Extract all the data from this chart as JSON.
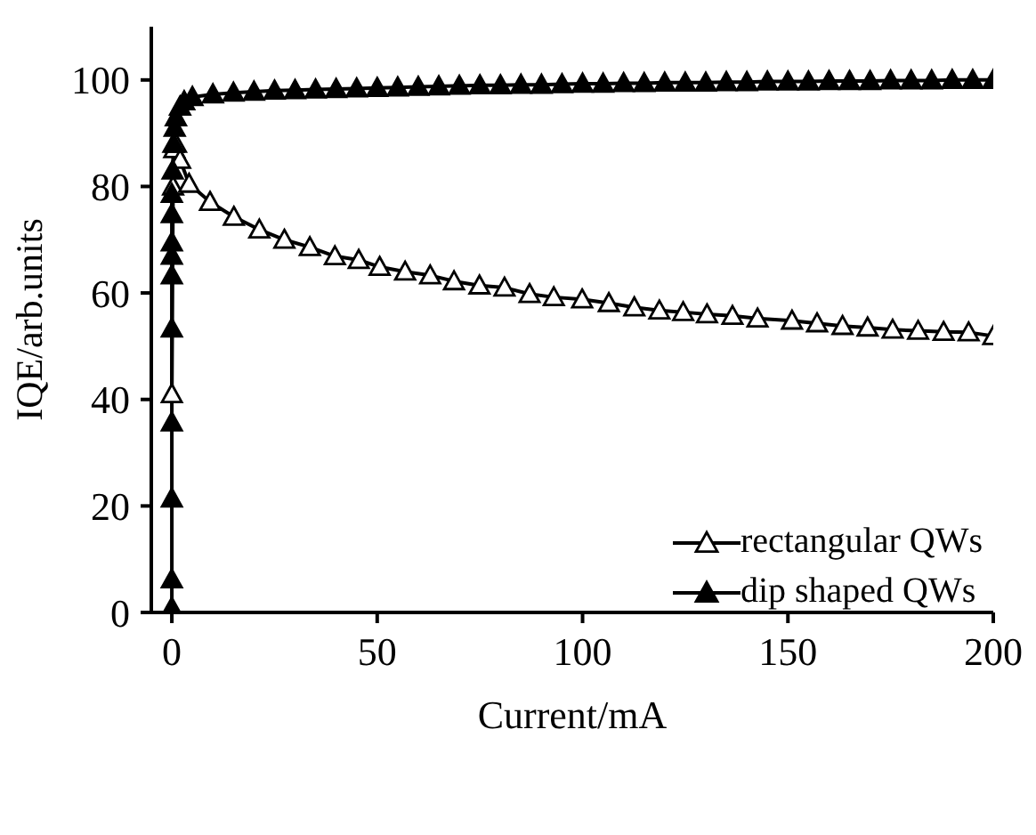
{
  "chart_data": {
    "type": "line",
    "xlabel": "Current/mA",
    "ylabel": "IQE/arb.units",
    "xlim": [
      -5,
      200
    ],
    "xticks": [
      0,
      50,
      100,
      150,
      200
    ],
    "ylim": [
      0,
      110
    ],
    "yticks": [
      0,
      20,
      40,
      60,
      80,
      100
    ],
    "grid": false,
    "legend": "bottom right",
    "marker": "triangle",
    "line_style": "solid",
    "series": [
      {
        "name": "rectangular QWs",
        "color": "#000000",
        "x": [
          0,
          0.3,
          0.6,
          1,
          2,
          4.2,
          9.3,
          15.1,
          21.3,
          27.4,
          33.6,
          39.7,
          45.5,
          50.6,
          56.8,
          62.9,
          68.7,
          74.9,
          81,
          87.1,
          93,
          99.9,
          106.4,
          112.6,
          118.7,
          124.5,
          130.3,
          136.5,
          142.6,
          151,
          157.1,
          163.3,
          169.4,
          175.5,
          181.7,
          187.9,
          194,
          200
        ],
        "values": [
          41,
          80,
          87,
          88,
          85,
          80.5,
          77.1,
          74.3,
          71.9,
          70,
          68.6,
          66.9,
          66.2,
          64.9,
          64,
          63.3,
          62.2,
          61.4,
          61,
          59.8,
          59.2,
          58.8,
          58.1,
          57.3,
          56.7,
          56.4,
          56,
          55.7,
          55.2,
          54.8,
          54.3,
          53.8,
          53.5,
          53.1,
          52.9,
          52.7,
          52.6,
          51.9
        ]
      },
      {
        "name": "dip shaped QWs",
        "color": "#000000",
        "x": [
          0,
          0,
          0,
          0,
          0,
          0,
          0,
          0,
          0,
          0,
          0.2,
          0.4,
          0.7,
          1,
          2,
          3,
          5,
          10,
          15,
          20,
          25,
          30,
          35,
          40,
          45,
          50,
          55,
          60,
          65,
          70,
          75,
          80,
          85,
          90,
          95,
          100,
          105,
          110,
          115,
          120,
          125,
          130,
          135,
          140,
          145,
          150,
          155,
          160,
          165,
          170,
          175,
          180,
          185,
          190,
          195,
          200
        ],
        "values": [
          0.9,
          6.2,
          21.4,
          35.7,
          53.3,
          63.3,
          67,
          69.5,
          74.8,
          78.6,
          83,
          88,
          91,
          93,
          95,
          96,
          96.8,
          97.3,
          97.6,
          97.8,
          98,
          98.1,
          98.2,
          98.3,
          98.4,
          98.5,
          98.6,
          98.7,
          98.8,
          98.9,
          99,
          99,
          99.1,
          99.1,
          99.2,
          99.3,
          99.3,
          99.4,
          99.4,
          99.5,
          99.5,
          99.5,
          99.6,
          99.6,
          99.7,
          99.7,
          99.7,
          99.8,
          99.8,
          99.8,
          99.9,
          99.9,
          99.9,
          100,
          100,
          100
        ]
      }
    ]
  }
}
